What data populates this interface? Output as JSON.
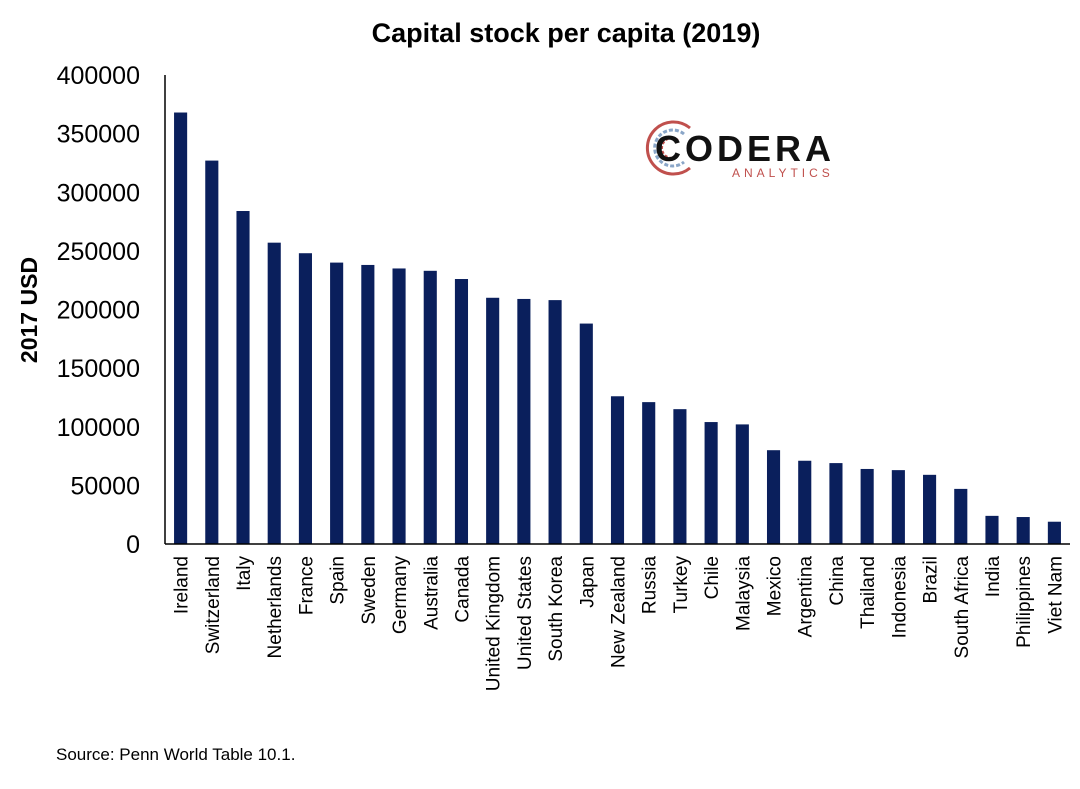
{
  "chart_data": {
    "type": "bar",
    "title": "Capital stock per capita (2019)",
    "ylabel": "2017 USD",
    "xlabel": "",
    "ylim": [
      0,
      400000
    ],
    "yticks": [
      0,
      50000,
      100000,
      150000,
      200000,
      250000,
      300000,
      350000,
      400000
    ],
    "grid": false,
    "bar_color": "#0a1f5c",
    "categories": [
      "Ireland",
      "Switzerland",
      "Italy",
      "Netherlands",
      "France",
      "Spain",
      "Sweden",
      "Germany",
      "Australia",
      "Canada",
      "United Kingdom",
      "United States",
      "South Korea",
      "Japan",
      "New Zealand",
      "Russia",
      "Turkey",
      "Chile",
      "Malaysia",
      "Mexico",
      "Argentina",
      "China",
      "Thailand",
      "Indonesia",
      "Brazil",
      "South Africa",
      "India",
      "Philippines",
      "Viet Nam"
    ],
    "values": [
      368000,
      327000,
      284000,
      257000,
      248000,
      240000,
      238000,
      235000,
      233000,
      226000,
      210000,
      209000,
      208000,
      188000,
      126000,
      121000,
      115000,
      104000,
      102000,
      80000,
      71000,
      69000,
      64000,
      63000,
      59000,
      47000,
      24000,
      23000,
      19000
    ]
  },
  "source": "Source: Penn World Table 10.1.",
  "logo": {
    "name": "CODERA",
    "subtitle": "ANALYTICS",
    "color_main": "#111111",
    "color_sub": "#c0504d"
  }
}
